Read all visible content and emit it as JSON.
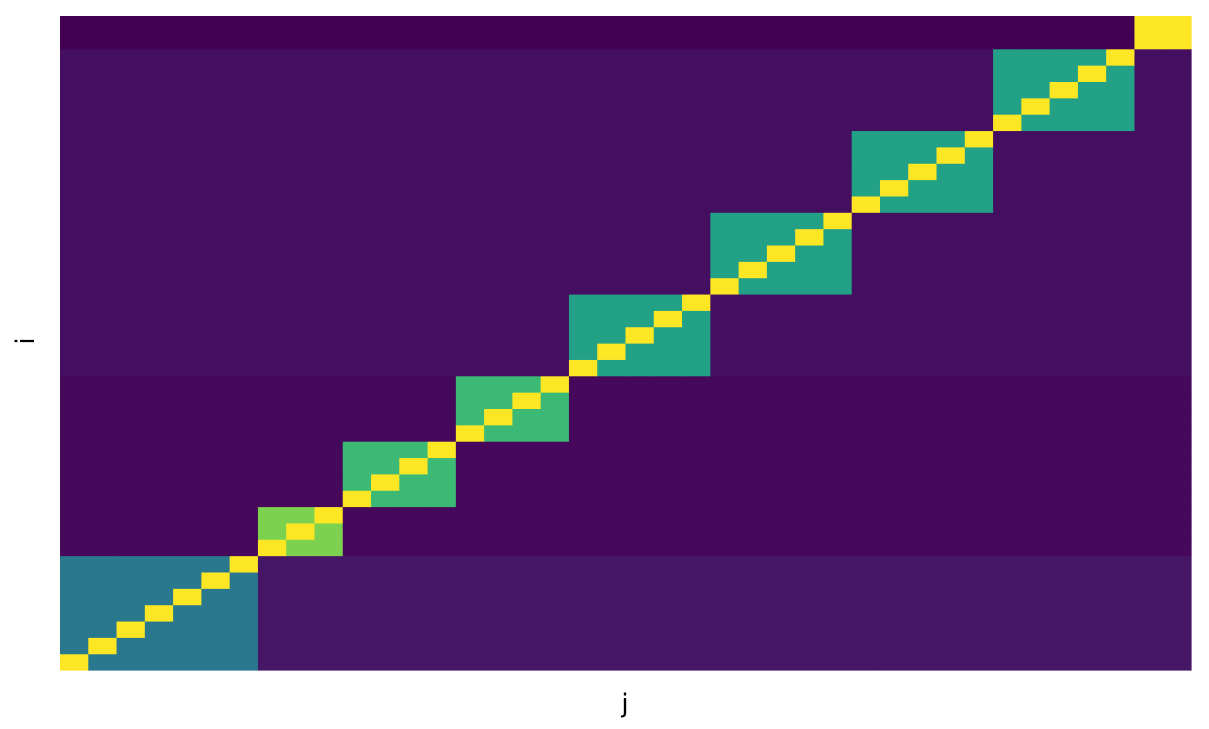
{
  "chart_data": {
    "type": "heatmap",
    "title": "",
    "xlabel": "j",
    "ylabel": "i",
    "origin": "lower-left",
    "n_cols": 40,
    "n_rows": 40,
    "colormap": {
      "name": "viridis",
      "stops": [
        "#440154",
        "#482878",
        "#3e4989",
        "#31688e",
        "#26828e",
        "#1f9e89",
        "#35b779",
        "#6ece58",
        "#b5de2b",
        "#fde725"
      ]
    },
    "vmin": 0,
    "vmax": 1,
    "blocks": [
      {
        "cols": [
          0,
          6
        ],
        "rows": [
          0,
          6
        ],
        "block_value": 0.4,
        "background_value": 0.06,
        "diagonal_value": 1.0
      },
      {
        "cols": [
          7,
          9
        ],
        "rows": [
          7,
          9
        ],
        "block_value": 0.8,
        "background_value": 0.02,
        "diagonal_value": 1.0
      },
      {
        "cols": [
          10,
          13
        ],
        "rows": [
          10,
          13
        ],
        "block_value": 0.68,
        "background_value": 0.02,
        "diagonal_value": 1.0
      },
      {
        "cols": [
          14,
          17
        ],
        "rows": [
          14,
          17
        ],
        "block_value": 0.68,
        "background_value": 0.02,
        "diagonal_value": 1.0
      },
      {
        "cols": [
          18,
          22
        ],
        "rows": [
          18,
          22
        ],
        "block_value": 0.57,
        "background_value": 0.04,
        "diagonal_value": 1.0
      },
      {
        "cols": [
          23,
          27
        ],
        "rows": [
          23,
          27
        ],
        "block_value": 0.57,
        "background_value": 0.04,
        "diagonal_value": 1.0
      },
      {
        "cols": [
          28,
          32
        ],
        "rows": [
          28,
          32
        ],
        "block_value": 0.57,
        "background_value": 0.04,
        "diagonal_value": 1.0
      },
      {
        "cols": [
          33,
          37
        ],
        "rows": [
          33,
          37
        ],
        "block_value": 0.57,
        "background_value": 0.04,
        "diagonal_value": 1.0
      },
      {
        "cols": [
          38,
          39
        ],
        "rows": [
          38,
          39
        ],
        "block_value": 1.0,
        "background_value": 0.0,
        "diagonal_value": 1.0
      }
    ]
  }
}
